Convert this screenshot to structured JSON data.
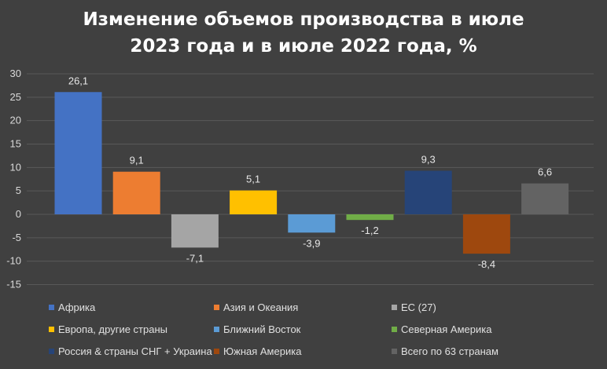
{
  "title_line1": "Изменение объемов производства в июле",
  "title_line2": "2023 года и в июле 2022 года, %",
  "chart_data": {
    "type": "bar",
    "title": "Изменение объемов производства в июле 2023 года и в июле 2022 года, %",
    "categories": [
      "Африка",
      "Азия и Океания",
      "ЕС (27)",
      "Европа, другие страны",
      "Ближний Восток",
      "Северная Америка",
      "Россия & страны СНГ + Украина",
      "Южная Америка",
      "Всего по 63 странам"
    ],
    "values": [
      26.1,
      9.1,
      -7.1,
      5.1,
      -3.9,
      -1.2,
      9.3,
      -8.4,
      6.6
    ],
    "value_labels": [
      "26,1",
      "9,1",
      "-7,1",
      "5,1",
      "-3,9",
      "-1,2",
      "9,3",
      "-8,4",
      "6,6"
    ],
    "colors": [
      "#4472c4",
      "#ed7d31",
      "#a5a5a5",
      "#ffc000",
      "#5b9bd5",
      "#70ad47",
      "#264478",
      "#9e480e",
      "#636363"
    ],
    "ylim": [
      -15,
      30
    ],
    "yticks": [
      30,
      25,
      20,
      15,
      10,
      5,
      0,
      -5,
      -10,
      -15
    ],
    "grid": true,
    "legend_position": "bottom"
  },
  "colors": {
    "background": "#404040",
    "gridline": "#595959",
    "axis_text": "#d9d9d9"
  }
}
